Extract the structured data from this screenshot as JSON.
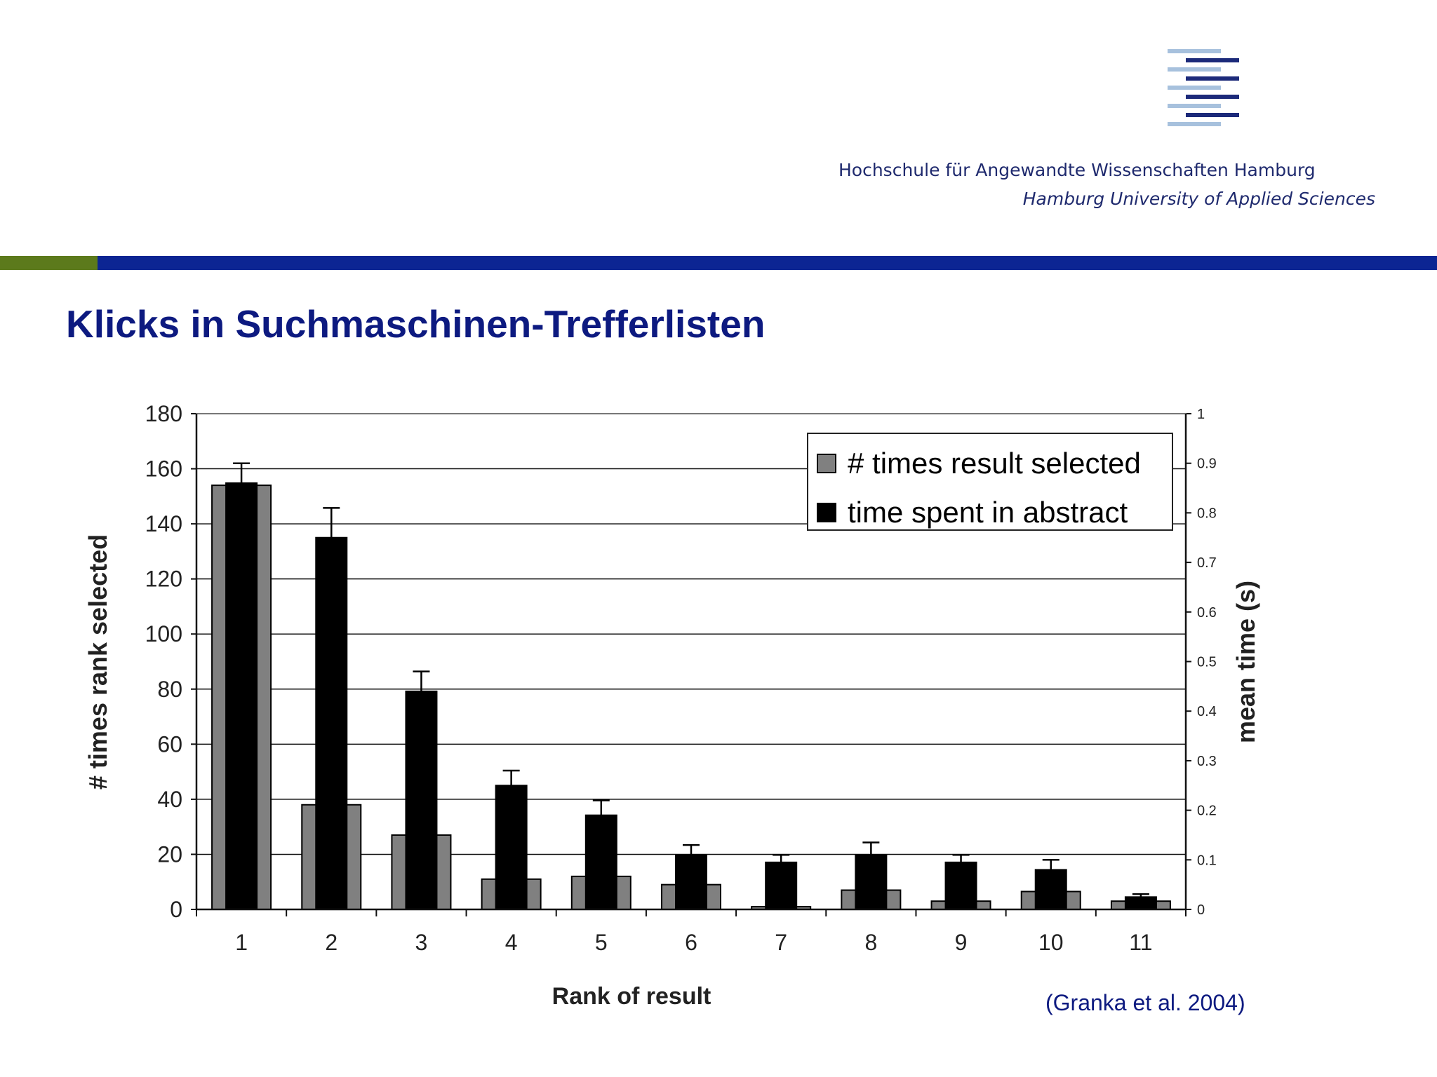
{
  "header": {
    "university_de": "Hochschule für Angewandte Wissenschaften Hamburg",
    "university_en": "Hamburg University of Applied Sciences",
    "logo": {
      "icon": "haw-hamburg-stripes-logo",
      "colors": {
        "light": "#a7c1dd",
        "dark": "#1c2a7a"
      }
    },
    "band_colors": {
      "green": "#5c7a1c",
      "blue": "#0c2593"
    }
  },
  "slide": {
    "title": "Klicks in Suchmaschinen-Trefferlisten",
    "citation": "(Granka et al. 2004)"
  },
  "chart_data": {
    "type": "bar",
    "title": "",
    "xlabel": "Rank of result",
    "ylabel": "# times rank selected",
    "ylabel_right": "mean time (s)",
    "categories": [
      "1",
      "2",
      "3",
      "4",
      "5",
      "6",
      "7",
      "8",
      "9",
      "10",
      "11"
    ],
    "ylim": [
      0,
      180
    ],
    "y_ticks": [
      "0",
      "20",
      "40",
      "60",
      "80",
      "100",
      "120",
      "140",
      "160",
      "180"
    ],
    "ylim_right": [
      0,
      1
    ],
    "y_ticks_right": [
      "0",
      "0.1",
      "0.2",
      "0.3",
      "0.4",
      "0.5",
      "0.6",
      "0.7",
      "0.8",
      "0.9",
      "1"
    ],
    "grid": true,
    "legend_position": "top-right",
    "series": [
      {
        "name": "# times result selected",
        "axis": "left",
        "color": "#808080",
        "values": [
          154,
          38,
          27,
          11,
          12,
          9,
          1,
          7,
          3,
          6.5,
          3
        ]
      },
      {
        "name": "time spent in abstract",
        "axis": "right",
        "color": "#000000",
        "values": [
          0.86,
          0.75,
          0.44,
          0.25,
          0.19,
          0.11,
          0.095,
          0.11,
          0.095,
          0.08,
          0.025
        ],
        "error": [
          0.04,
          0.06,
          0.04,
          0.03,
          0.03,
          0.02,
          0.015,
          0.025,
          0.015,
          0.02,
          0.006
        ]
      }
    ]
  }
}
